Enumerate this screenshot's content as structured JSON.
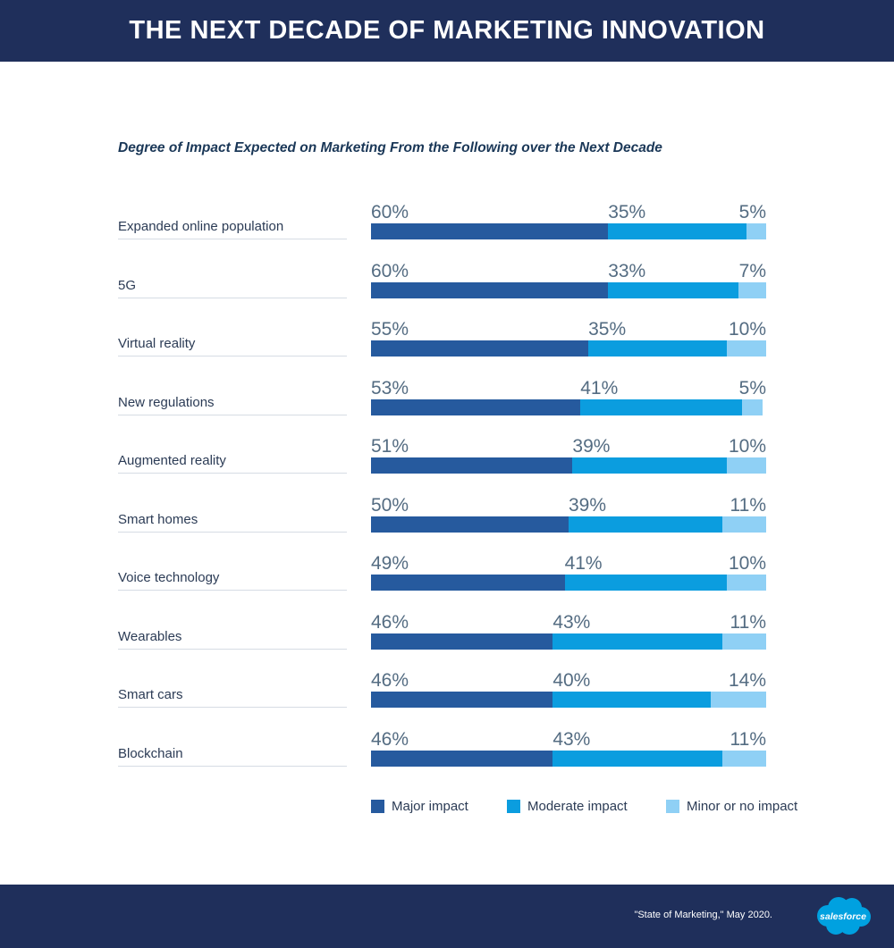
{
  "header": {
    "title": "THE NEXT DECADE OF MARKETING INNOVATION"
  },
  "colors": {
    "major": "#265a9e",
    "moderate": "#0b9ddf",
    "minor": "#8fd0f5",
    "banner": "#1f2f5b"
  },
  "chart_data": {
    "type": "bar",
    "orientation": "horizontal-stacked-100",
    "title": "Degree of Impact Expected on Marketing From the Following over the Next Decade",
    "categories": [
      "Expanded online population",
      "5G",
      "Virtual reality",
      "New regulations",
      "Augmented reality",
      "Smart homes",
      "Voice technology",
      "Wearables",
      "Smart cars",
      "Blockchain"
    ],
    "series": [
      {
        "name": "Major impact",
        "values": [
          60,
          60,
          55,
          53,
          51,
          50,
          49,
          46,
          46,
          46
        ]
      },
      {
        "name": "Moderate impact",
        "values": [
          35,
          33,
          35,
          41,
          39,
          39,
          41,
          43,
          40,
          43
        ]
      },
      {
        "name": "Minor or no impact",
        "values": [
          5,
          7,
          10,
          5,
          10,
          11,
          10,
          11,
          14,
          11
        ]
      }
    ],
    "value_labels": [
      [
        "60%",
        "35%",
        "5%"
      ],
      [
        "60%",
        "33%",
        "7%"
      ],
      [
        "55%",
        "35%",
        "10%"
      ],
      [
        "53%",
        "41%",
        "5%"
      ],
      [
        "51%",
        "39%",
        "10%"
      ],
      [
        "50%",
        "39%",
        "11%"
      ],
      [
        "49%",
        "41%",
        "10%"
      ],
      [
        "46%",
        "43%",
        "11%"
      ],
      [
        "46%",
        "40%",
        "14%"
      ],
      [
        "46%",
        "43%",
        "11%"
      ]
    ],
    "legend_position": "bottom",
    "xlim": [
      0,
      100
    ]
  },
  "footer": {
    "source": "\"State of Marketing,\" May 2020.",
    "logo_text": "salesforce"
  }
}
